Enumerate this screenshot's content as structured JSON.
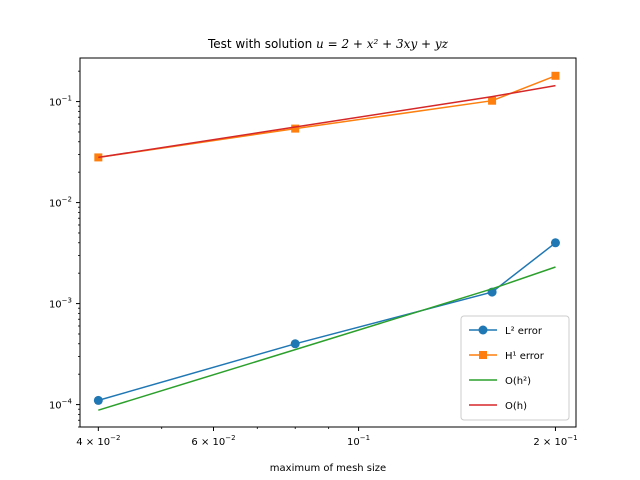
{
  "chart_data": {
    "type": "line",
    "title": "Test with solution u = 2 + x² + 3xy + yz",
    "xlabel": "maximum of mesh size",
    "ylabel": "",
    "xscale": "log",
    "yscale": "log",
    "xlim": [
      0.0375,
      0.215
    ],
    "ylim": [
      6e-05,
      0.27
    ],
    "grid": false,
    "legend_position": "lower right",
    "x_ticks": [
      {
        "value": 0.04,
        "base": "4",
        "exp": "−2"
      },
      {
        "value": 0.06,
        "base": "6",
        "exp": "−2"
      },
      {
        "value": 0.1,
        "base": "10",
        "exp": "−1"
      },
      {
        "value": 0.2,
        "base": "2",
        "exp": "−1"
      }
    ],
    "y_ticks": [
      {
        "value": 0.0001,
        "base": "10",
        "exp": "−4"
      },
      {
        "value": 0.001,
        "base": "10",
        "exp": "−3"
      },
      {
        "value": 0.01,
        "base": "10",
        "exp": "−2"
      },
      {
        "value": 0.1,
        "base": "10",
        "exp": "−1"
      }
    ],
    "series": [
      {
        "name": "L² error",
        "color": "#1f77b4",
        "marker": "circle",
        "x": [
          0.04,
          0.08,
          0.16,
          0.2
        ],
        "y": [
          0.00011,
          0.0004,
          0.0013,
          0.004
        ]
      },
      {
        "name": "H¹ error",
        "color": "#ff7f0e",
        "marker": "square",
        "x": [
          0.04,
          0.08,
          0.16,
          0.2
        ],
        "y": [
          0.028,
          0.054,
          0.102,
          0.18
        ]
      },
      {
        "name": "O(h²)",
        "color": "#2ca02c",
        "marker": "none",
        "x": [
          0.04,
          0.08,
          0.16,
          0.2
        ],
        "y": [
          8.8e-05,
          0.00035,
          0.0014,
          0.0023
        ]
      },
      {
        "name": "O(h)",
        "color": "#d62728",
        "marker": "none",
        "x": [
          0.04,
          0.08,
          0.16,
          0.2
        ],
        "y": [
          0.028,
          0.056,
          0.112,
          0.144
        ]
      }
    ]
  }
}
